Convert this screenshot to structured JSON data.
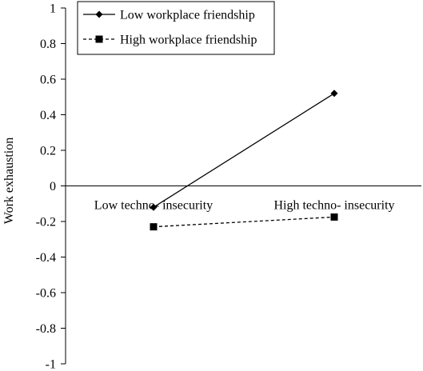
{
  "chart_data": {
    "type": "line",
    "title": "",
    "xlabel": "",
    "ylabel": "Work exhaustion",
    "categories": [
      "Low techno- insecurity",
      "High techno- insecurity"
    ],
    "ylim": [
      -1,
      1
    ],
    "yticks": [
      1,
      0.8,
      0.6,
      0.4,
      0.2,
      0,
      -0.2,
      -0.4,
      -0.6,
      -0.8,
      -1
    ],
    "ytick_labels": [
      "1",
      "0.8",
      "0.6",
      "0.4",
      "0.2",
      "0",
      "-0.2",
      "-0.4",
      "-0.6",
      "-0.8",
      "-1"
    ],
    "grid": false,
    "legend_position": "top-left",
    "series": [
      {
        "name": "Low workplace friendship",
        "values": [
          -0.12,
          0.52
        ],
        "marker": "diamond",
        "line_style": "solid",
        "color": "#000000"
      },
      {
        "name": "High workplace friendship",
        "values": [
          -0.23,
          -0.175
        ],
        "marker": "square",
        "line_style": "dashed",
        "color": "#000000"
      }
    ]
  }
}
